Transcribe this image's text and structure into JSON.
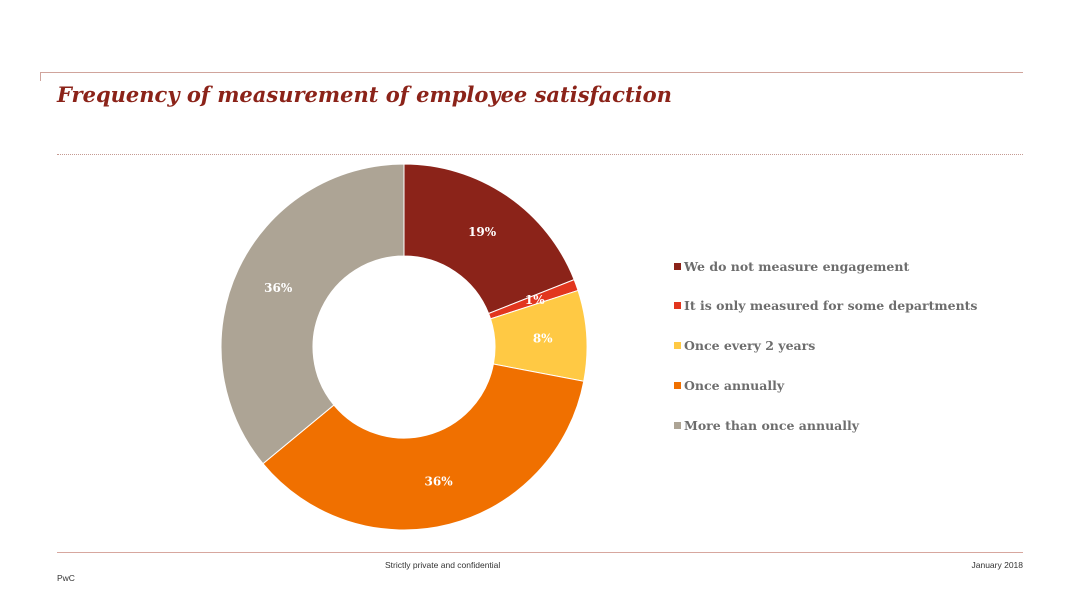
{
  "slide": {
    "title": "Frequency of measurement of employee satisfaction"
  },
  "chart_data": {
    "type": "pie",
    "hole": true,
    "legend_position": "right",
    "categories": [
      "We do not measure engagement",
      "It is only measured for some departments",
      "Once every 2 years",
      "Once annually",
      "More than once annually"
    ],
    "values": [
      19,
      1,
      8,
      36,
      36
    ],
    "labels": [
      "19%",
      "1%",
      "8%",
      "36%",
      "36%"
    ],
    "colors": [
      "#8b2319",
      "#e2361e",
      "#ffc944",
      "#f07000",
      "#ada495"
    ]
  },
  "footer": {
    "confidential": "Strictly private and confidential",
    "date": "January 2018",
    "brand": "PwC"
  }
}
